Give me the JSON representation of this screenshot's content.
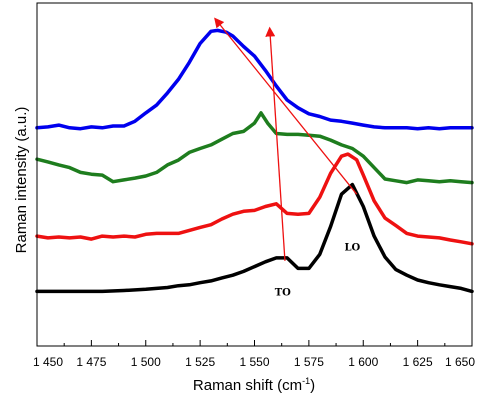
{
  "chart_data": {
    "type": "line",
    "xlabel": "Raman shift (cm",
    "xlabel_sup": "-1",
    "xlabel_close": ")",
    "ylabel": "Raman intensity (a.u.)",
    "xlim": [
      1450,
      1650
    ],
    "ylim": [
      0,
      100
    ],
    "xticks": [
      1450,
      1475,
      1500,
      1525,
      1550,
      1575,
      1600,
      1625,
      1650
    ],
    "xtick_labels": [
      "1 450",
      "1 475",
      "1 500",
      "1 525",
      "1 550",
      "1 575",
      "1 600",
      "1 625",
      "1 650"
    ],
    "grid": false,
    "series": [
      {
        "color": "#0000ee",
        "x": [
          1450,
          1455,
          1460,
          1465,
          1470,
          1475,
          1480,
          1485,
          1490,
          1495,
          1500,
          1505,
          1510,
          1515,
          1520,
          1525,
          1530,
          1533,
          1537,
          1540,
          1545,
          1550,
          1555,
          1560,
          1565,
          1570,
          1575,
          1580,
          1585,
          1590,
          1595,
          1600,
          1605,
          1610,
          1615,
          1620,
          1625,
          1630,
          1635,
          1640,
          1645,
          1650
        ],
        "y": [
          63.6,
          63.9,
          64.5,
          63.6,
          63.3,
          63.9,
          63.6,
          64.2,
          64.2,
          65.8,
          68.6,
          71.2,
          75.3,
          79.8,
          85.5,
          91.8,
          95.9,
          96.2,
          95.6,
          94.3,
          90.8,
          87.6,
          82.8,
          77.6,
          72.9,
          70.3,
          68.3,
          67.4,
          66.2,
          65.8,
          65.2,
          64.5,
          63.9,
          63.6,
          63.6,
          63.6,
          63.3,
          63.6,
          63.3,
          63.6,
          63.6,
          63.6
        ]
      },
      {
        "color": "#1e7d1e",
        "x": [
          1450,
          1455,
          1460,
          1465,
          1470,
          1475,
          1480,
          1485,
          1490,
          1495,
          1500,
          1505,
          1510,
          1515,
          1520,
          1525,
          1530,
          1535,
          1540,
          1545,
          1550,
          1553,
          1556,
          1560,
          1565,
          1570,
          1575,
          1580,
          1585,
          1590,
          1595,
          1600,
          1605,
          1610,
          1615,
          1620,
          1625,
          1630,
          1635,
          1640,
          1645,
          1650
        ],
        "y": [
          53.1,
          52.2,
          51.2,
          50.3,
          48.7,
          48.1,
          47.8,
          45.6,
          46.2,
          46.8,
          47.5,
          48.7,
          51.2,
          52.8,
          55.4,
          56.7,
          57.9,
          59.8,
          61.7,
          62.4,
          65.2,
          68.6,
          65.2,
          61.7,
          61.4,
          61.4,
          61.1,
          60.8,
          59.5,
          57.9,
          56.7,
          54.1,
          50.3,
          46.5,
          45.9,
          45.3,
          46.2,
          45.9,
          45.6,
          45.9,
          45.6,
          45.3
        ]
      },
      {
        "color": "#ee1111",
        "x": [
          1450,
          1455,
          1460,
          1465,
          1470,
          1475,
          1480,
          1485,
          1490,
          1495,
          1500,
          1505,
          1510,
          1515,
          1520,
          1525,
          1530,
          1535,
          1540,
          1545,
          1550,
          1555,
          1560,
          1565,
          1570,
          1575,
          1580,
          1585,
          1590,
          1593,
          1597,
          1600,
          1605,
          1610,
          1615,
          1620,
          1625,
          1630,
          1635,
          1640,
          1645,
          1650
        ],
        "y": [
          27.4,
          26.8,
          27.1,
          26.8,
          27.1,
          26.4,
          27.4,
          27.1,
          27.4,
          27.1,
          28.0,
          28.3,
          28.3,
          28.3,
          29.3,
          30.3,
          31.2,
          33.1,
          34.7,
          35.7,
          36.0,
          37.3,
          38.2,
          35.0,
          34.7,
          35.0,
          40.4,
          48.4,
          54.1,
          54.8,
          52.9,
          47.8,
          39.2,
          33.4,
          30.9,
          28.3,
          27.4,
          27.1,
          26.8,
          26.1,
          25.5,
          24.8
        ]
      },
      {
        "color": "#000000",
        "x": [
          1450,
          1460,
          1470,
          1480,
          1490,
          1500,
          1505,
          1510,
          1515,
          1520,
          1525,
          1530,
          1535,
          1540,
          1545,
          1550,
          1555,
          1560,
          1565,
          1570,
          1575,
          1580,
          1585,
          1590,
          1595,
          1600,
          1605,
          1610,
          1615,
          1620,
          1625,
          1630,
          1635,
          1640,
          1645,
          1650
        ],
        "y": [
          8.9,
          8.9,
          8.9,
          8.9,
          9.2,
          9.6,
          9.9,
          10.2,
          10.8,
          11.1,
          11.8,
          12.4,
          13.4,
          14.3,
          15.6,
          17.2,
          18.8,
          20.1,
          20.1,
          16.6,
          16.6,
          21.3,
          30.6,
          41.4,
          44.6,
          37.3,
          27.4,
          20.4,
          16.2,
          14.3,
          12.7,
          11.8,
          11.1,
          10.5,
          9.9,
          8.9
        ]
      }
    ],
    "annotations": [
      {
        "text": "LO",
        "x": 1595,
        "y": 22.6
      },
      {
        "text": "TO",
        "x": 1563,
        "y": 7.6
      }
    ],
    "arrows": [
      {
        "color": "#ee1111",
        "from": [
          1564,
          19.1
        ],
        "to": [
          1557,
          96.8
        ]
      },
      {
        "color": "#ee1111",
        "from": [
          1597,
          41.4
        ],
        "to": [
          1532,
          100.0
        ]
      }
    ]
  }
}
